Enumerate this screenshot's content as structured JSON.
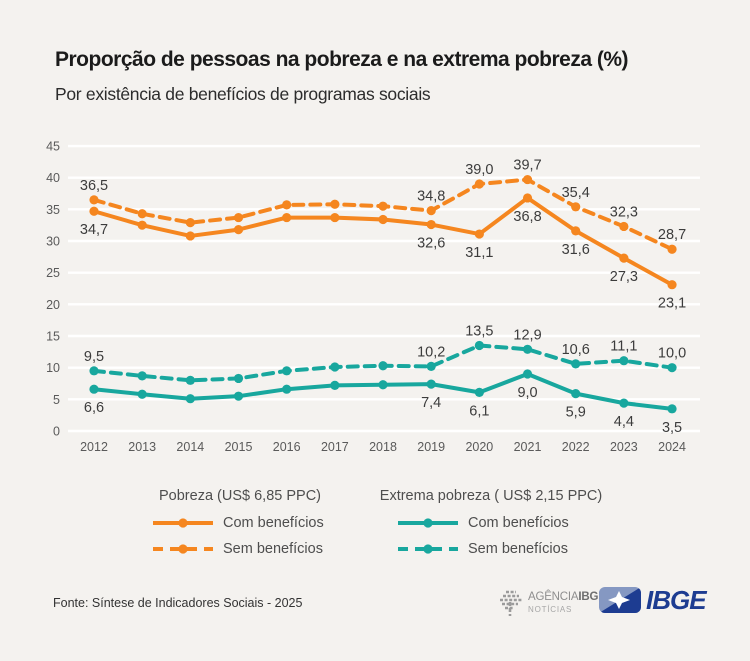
{
  "page": {
    "background": "#f4f2ef"
  },
  "colors": {
    "orange": "#f5861f",
    "teal": "#18a79e",
    "grid": "#ffffff",
    "axis_text": "#5a5a5a",
    "data_label_text": "#3c3c3c",
    "ibge_navy": "#1d3c91",
    "ibge_light_blue": "#8598c2"
  },
  "header": {
    "title": "Proporção de pessoas na pobreza e na extrema pobreza (%)",
    "subtitle": "Por existência de benefícios de programas sociais"
  },
  "chart_data": {
    "type": "line",
    "title": "Proporção de pessoas na pobreza e na extrema pobreza (%)",
    "subtitle": "Por existência de benefícios de programas sociais",
    "categories": [
      2012,
      2013,
      2014,
      2015,
      2016,
      2017,
      2018,
      2019,
      2020,
      2021,
      2022,
      2023,
      2024
    ],
    "ylim": [
      0,
      45
    ],
    "ytick_step": 5,
    "grid": "horizontal-white",
    "legend_position": "bottom",
    "decimal_separator": ",",
    "labeled_point_indices": [
      0,
      7,
      8,
      9,
      10,
      11,
      12
    ],
    "note": "values for 2013-2018 are unlabeled in the chart and estimated from pixel positions",
    "series": [
      {
        "name": "Pobreza (US$ 6,85 PPC) - Sem benefícios",
        "group": "Pobreza (US$ 6,85 PPC)",
        "legend_label": "Sem benefícios",
        "color": "orange",
        "style": "dashed",
        "label_position": "above",
        "values": [
          36.5,
          34.3,
          32.9,
          33.7,
          35.7,
          35.8,
          35.5,
          34.8,
          39.0,
          39.7,
          35.4,
          32.3,
          28.7
        ]
      },
      {
        "name": "Pobreza (US$ 6,85 PPC) - Com benefícios",
        "group": "Pobreza (US$ 6,85 PPC)",
        "legend_label": "Com benefícios",
        "color": "orange",
        "style": "solid",
        "label_position": "below",
        "values": [
          34.7,
          32.5,
          30.8,
          31.8,
          33.7,
          33.7,
          33.4,
          32.6,
          31.1,
          36.8,
          31.6,
          27.3,
          23.1
        ]
      },
      {
        "name": "Extrema pobreza (US$ 2,15 PPC) - Sem benefícios",
        "group": "Extrema pobreza ( US$ 2,15 PPC)",
        "legend_label": "Sem benefícios",
        "color": "teal",
        "style": "dashed",
        "label_position": "above",
        "values": [
          9.5,
          8.7,
          8.0,
          8.3,
          9.5,
          10.1,
          10.3,
          10.2,
          13.5,
          12.9,
          10.6,
          11.1,
          10.0
        ]
      },
      {
        "name": "Extrema pobreza (US$ 2,15 PPC) - Com benefícios",
        "group": "Extrema pobreza ( US$ 2,15 PPC)",
        "legend_label": "Com benefícios",
        "color": "teal",
        "style": "solid",
        "label_position": "below",
        "values": [
          6.6,
          5.8,
          5.1,
          5.5,
          6.6,
          7.2,
          7.3,
          7.4,
          6.1,
          9.0,
          5.9,
          4.4,
          3.5
        ]
      }
    ]
  },
  "legend": {
    "groups": [
      {
        "title": "Pobreza (US$ 6,85 PPC)",
        "items": [
          {
            "label": "Com benefícios",
            "style": "solid"
          },
          {
            "label": "Sem benefícios",
            "style": "dashed"
          }
        ]
      },
      {
        "title": "Extrema pobreza ( US$ 2,15 PPC)",
        "items": [
          {
            "label": "Com benefícios",
            "style": "solid"
          },
          {
            "label": "Sem benefícios",
            "style": "dashed"
          }
        ]
      }
    ]
  },
  "footer": {
    "source": "Fonte: Síntese de Indicadores Sociais - 2025",
    "agency_logo": {
      "line1_regular": "AGÊNCIA",
      "line1_bold": "IBGE",
      "line2": "NOTÍCIAS"
    },
    "ibge_logo_text": "IBGE"
  }
}
